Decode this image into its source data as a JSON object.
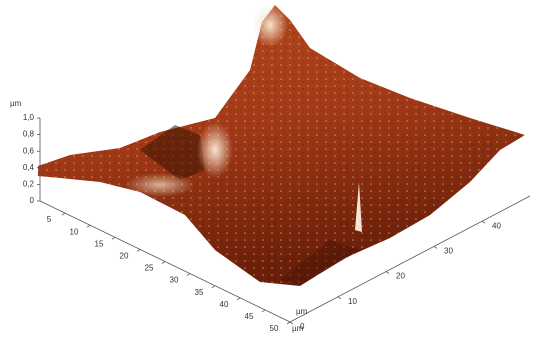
{
  "chart_data": {
    "type": "surface3d",
    "z_label": "µm",
    "x_label": "µm",
    "y_label": "µm",
    "zlim": [
      0,
      1.0
    ],
    "zticks": [
      0,
      {
        "value": 0.2,
        "label": "0,2"
      },
      {
        "value": 0.4,
        "label": "0,4"
      },
      {
        "value": 0.6,
        "label": "0,6"
      },
      {
        "value": 0.8,
        "label": "0,8"
      },
      {
        "value": 1.0,
        "label": "1,0"
      }
    ],
    "xlim": [
      0,
      50
    ],
    "xticks": [
      5,
      10,
      15,
      20,
      25,
      30,
      35,
      40,
      45,
      50
    ],
    "ylim": [
      0,
      50
    ],
    "yticks": [
      0,
      10,
      20,
      30,
      40
    ]
  }
}
